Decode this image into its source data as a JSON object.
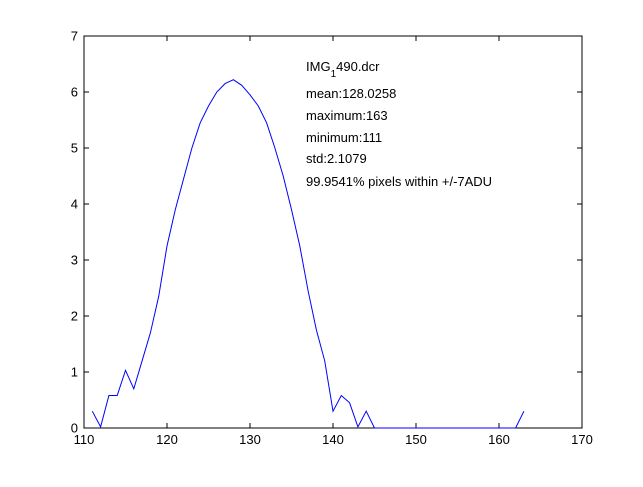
{
  "chart_data": {
    "type": "line",
    "title": "",
    "xlabel": "",
    "ylabel": "",
    "xlim": [
      110,
      170
    ],
    "ylim": [
      0,
      7
    ],
    "xticks": [
      "110",
      "120",
      "130",
      "140",
      "150",
      "160",
      "170"
    ],
    "yticks": [
      "0",
      "1",
      "2",
      "3",
      "4",
      "5",
      "6",
      "7"
    ],
    "grid": false,
    "legend": "none",
    "series": [
      {
        "color": "#0000ff",
        "x": [
          111,
          112,
          113,
          114,
          115,
          116,
          117,
          118,
          119,
          120,
          121,
          122,
          123,
          124,
          125,
          126,
          127,
          128,
          129,
          130,
          131,
          132,
          133,
          134,
          135,
          136,
          137,
          138,
          139,
          140,
          141,
          142,
          143,
          144,
          145,
          146,
          147,
          148,
          149,
          150,
          151,
          152,
          153,
          154,
          155,
          156,
          157,
          158,
          159,
          160,
          161,
          162,
          163
        ],
        "y": [
          0.3,
          0.02,
          0.58,
          0.58,
          1.03,
          0.7,
          1.2,
          1.7,
          2.35,
          3.25,
          3.9,
          4.45,
          5.0,
          5.45,
          5.75,
          6.0,
          6.15,
          6.22,
          6.12,
          5.95,
          5.75,
          5.45,
          5.0,
          4.5,
          3.9,
          3.25,
          2.45,
          1.75,
          1.2,
          0.3,
          0.58,
          0.45,
          0.02,
          0.3,
          0,
          0,
          0,
          0,
          0,
          0,
          0,
          0,
          0,
          0,
          0,
          0,
          0,
          0,
          0,
          0,
          0,
          0,
          0.3
        ]
      }
    ],
    "annotation": {
      "filename_prefix": "IMG",
      "filename_sub": "1",
      "filename_suffix": "490.dcr",
      "lines": [
        "mean:128.0258",
        "maximum:163",
        "minimum:111",
        "std:2.1079",
        "99.9541% pixels within +/-7ADU"
      ]
    }
  }
}
